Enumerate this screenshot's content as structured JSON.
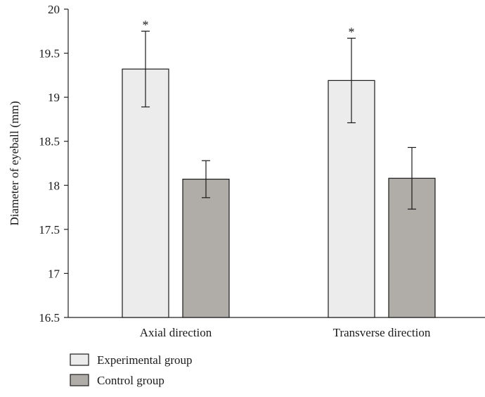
{
  "chart_data": {
    "type": "bar",
    "title": "",
    "xlabel": "",
    "ylabel": "Diameter of eyeball (mm)",
    "ylim": [
      16.5,
      20
    ],
    "yticks": [
      "16.5",
      "17",
      "17.5",
      "18",
      "18.5",
      "19",
      "19.5",
      "20"
    ],
    "grid": false,
    "categories": [
      "Axial direction",
      "Transverse direction"
    ],
    "series": [
      {
        "name": "Experimental group",
        "color": "#ececec",
        "values": [
          19.32,
          19.19
        ],
        "error": [
          0.43,
          0.48
        ],
        "annotations": [
          "*",
          "*"
        ]
      },
      {
        "name": "Control group",
        "color": "#b0aca7",
        "values": [
          18.07,
          18.08
        ],
        "error": [
          0.21,
          0.35
        ],
        "annotations": [
          "",
          ""
        ]
      }
    ],
    "legend": "bottom-left"
  }
}
